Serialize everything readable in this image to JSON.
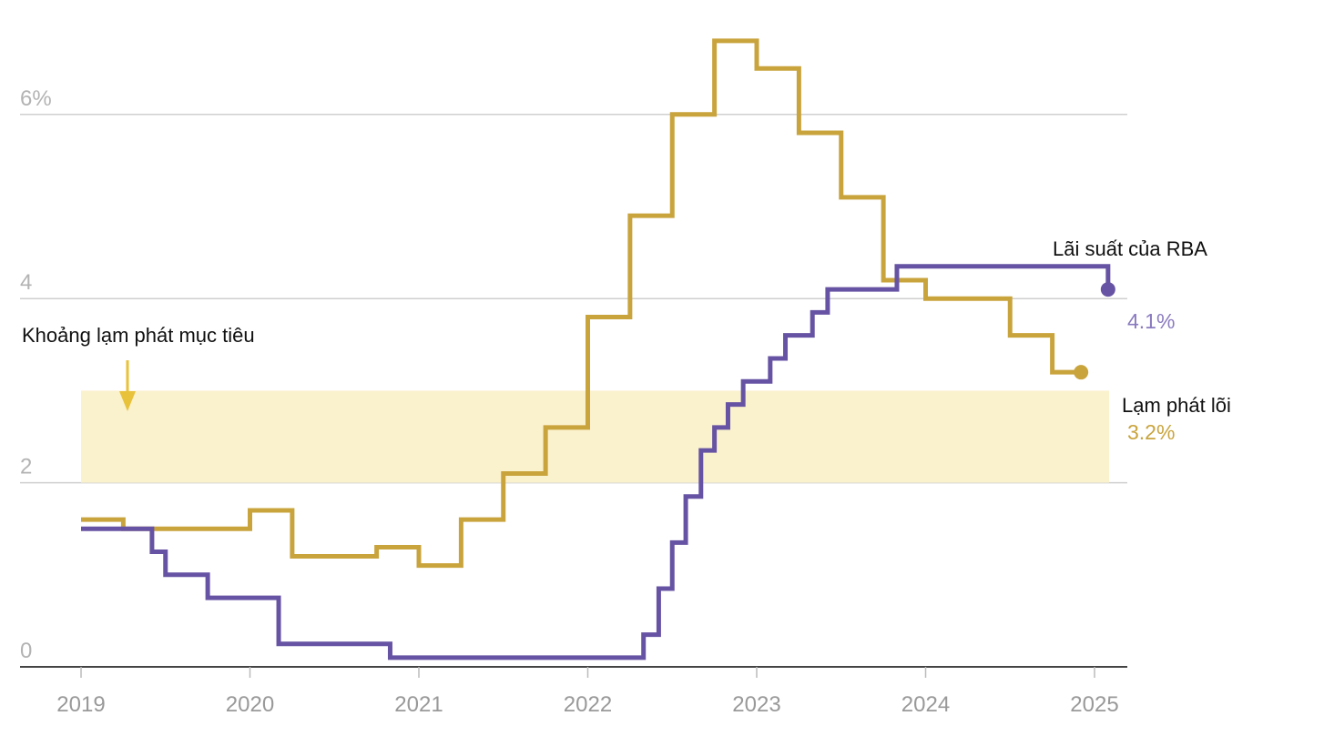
{
  "chart_data": {
    "type": "line",
    "step": true,
    "x_axis": {
      "ticks": [
        "2019",
        "2020",
        "2021",
        "2022",
        "2023",
        "2024",
        "2025"
      ],
      "range": [
        2019.0,
        2025.0
      ]
    },
    "y_axis": {
      "ticks": [
        {
          "value": 0,
          "label": "0"
        },
        {
          "value": 2,
          "label": "2"
        },
        {
          "value": 4,
          "label": "4"
        },
        {
          "value": 6,
          "label": "6%"
        }
      ],
      "range": [
        0,
        6.7
      ]
    },
    "grid": true,
    "target_band": {
      "label": "Khoảng lạm phát mục tiêu",
      "y_min": 2,
      "y_max": 3,
      "x_start": 2019.0,
      "x_end": 2025.0,
      "color": "#faf1cd",
      "arrow_color": "#e8c23a"
    },
    "series": [
      {
        "name": "Lạm phát lõi",
        "color": "#c9a43d",
        "end_label": "3.2%",
        "points": [
          [
            2019.0,
            1.6
          ],
          [
            2019.25,
            1.5
          ],
          [
            2019.5,
            1.5
          ],
          [
            2019.75,
            1.5
          ],
          [
            2020.0,
            1.5
          ],
          [
            2020.0,
            1.7
          ],
          [
            2020.25,
            1.2
          ],
          [
            2020.5,
            1.2
          ],
          [
            2020.75,
            1.3
          ],
          [
            2021.0,
            1.1
          ],
          [
            2021.25,
            1.6
          ],
          [
            2021.5,
            2.1
          ],
          [
            2021.75,
            2.6
          ],
          [
            2022.0,
            3.8
          ],
          [
            2022.25,
            4.9
          ],
          [
            2022.5,
            6.0
          ],
          [
            2022.75,
            6.8
          ],
          [
            2023.0,
            6.5
          ],
          [
            2023.25,
            5.8
          ],
          [
            2023.5,
            5.1
          ],
          [
            2023.75,
            4.2
          ],
          [
            2024.0,
            4.0
          ],
          [
            2024.25,
            4.0
          ],
          [
            2024.5,
            3.6
          ],
          [
            2024.75,
            3.2
          ],
          [
            2024.92,
            3.2
          ]
        ]
      },
      {
        "name": "Lãi suất của RBA",
        "color": "#6753a3",
        "end_label": "4.1%",
        "points": [
          [
            2019.0,
            1.5
          ],
          [
            2019.42,
            1.25
          ],
          [
            2019.5,
            1.0
          ],
          [
            2019.75,
            0.75
          ],
          [
            2020.17,
            0.25
          ],
          [
            2020.83,
            0.1
          ],
          [
            2022.33,
            0.35
          ],
          [
            2022.42,
            0.85
          ],
          [
            2022.5,
            1.35
          ],
          [
            2022.58,
            1.85
          ],
          [
            2022.67,
            2.35
          ],
          [
            2022.75,
            2.6
          ],
          [
            2022.83,
            2.85
          ],
          [
            2022.92,
            3.1
          ],
          [
            2023.08,
            3.35
          ],
          [
            2023.17,
            3.6
          ],
          [
            2023.33,
            3.85
          ],
          [
            2023.42,
            4.1
          ],
          [
            2023.83,
            4.35
          ],
          [
            2025.08,
            4.1
          ]
        ]
      }
    ]
  }
}
